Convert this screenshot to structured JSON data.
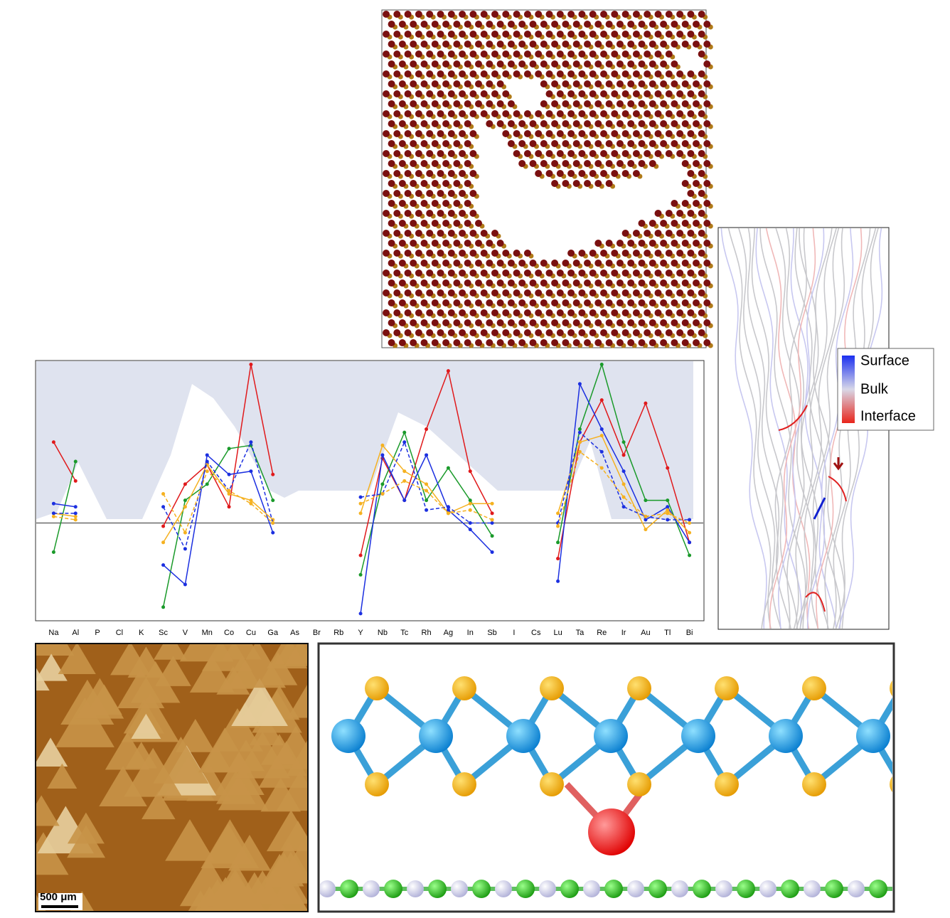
{
  "chart_data": {
    "type": "line",
    "categories": [
      "Na",
      "Al",
      "P",
      "Cl",
      "K",
      "Sc",
      "V",
      "Mn",
      "Co",
      "Cu",
      "Ga",
      "As",
      "Br",
      "Rb",
      "Y",
      "Nb",
      "Tc",
      "Rh",
      "Ag",
      "In",
      "Sb",
      "I",
      "Cs",
      "Lu",
      "Ta",
      "Re",
      "Ir",
      "Au",
      "Tl",
      "Bi"
    ],
    "ylim": [
      -3,
      5
    ],
    "series": [
      {
        "color": "#e0191b",
        "values": [
          2.5,
          1.3,
          null,
          null,
          null,
          -0.1,
          1.2,
          1.8,
          0.5,
          4.9,
          1.5,
          null,
          null,
          null,
          -1.0,
          2.0,
          0.7,
          2.9,
          4.7,
          1.6,
          0.3,
          null,
          null,
          -1.1,
          2.5,
          3.8,
          2.1,
          3.7,
          1.7,
          -0.6
        ]
      },
      {
        "color": "#1a9a2a",
        "values": [
          -0.9,
          1.9,
          null,
          null,
          null,
          -2.6,
          0.7,
          1.2,
          2.3,
          2.4,
          0.7,
          null,
          null,
          null,
          -1.6,
          1.2,
          2.8,
          0.7,
          1.7,
          0.7,
          -0.4,
          null,
          null,
          -0.6,
          2.9,
          4.9,
          2.5,
          0.7,
          0.7,
          -1.0
        ]
      },
      {
        "color": "#1b2fe0",
        "values": [
          0.6,
          0.5,
          null,
          null,
          null,
          -1.3,
          -1.9,
          2.1,
          1.5,
          1.6,
          -0.3,
          null,
          null,
          null,
          -2.8,
          2.1,
          0.7,
          2.1,
          0.4,
          -0.2,
          -0.9,
          null,
          null,
          -1.8,
          4.3,
          2.9,
          1.6,
          0.1,
          0.5,
          -0.6
        ]
      },
      {
        "color": "#f5b120",
        "values": [
          0.3,
          0.2,
          null,
          null,
          null,
          -0.6,
          0.5,
          1.8,
          0.9,
          0.7,
          0.1,
          null,
          null,
          null,
          0.3,
          2.4,
          1.6,
          1.2,
          0.3,
          0.6,
          0.6,
          null,
          null,
          0.3,
          2.5,
          2.7,
          1.2,
          -0.2,
          0.4,
          -0.3
        ]
      },
      {
        "color": "#1b2fe0",
        "line_style": "dashed",
        "values": [
          0.3,
          0.3,
          null,
          null,
          null,
          0.5,
          -0.8,
          1.9,
          1.0,
          2.5,
          0.0,
          null,
          null,
          null,
          0.8,
          0.9,
          2.5,
          0.4,
          0.5,
          0.0,
          0.0,
          null,
          null,
          0.0,
          2.8,
          2.2,
          0.5,
          0.2,
          0.1,
          0.1
        ]
      },
      {
        "color": "#f5b120",
        "line_style": "dashed",
        "values": [
          0.2,
          0.1,
          null,
          null,
          null,
          0.9,
          -0.3,
          1.6,
          1.0,
          0.6,
          0.0,
          null,
          null,
          null,
          0.6,
          0.9,
          1.3,
          1.0,
          0.3,
          0.4,
          0.1,
          null,
          null,
          -0.1,
          2.2,
          1.7,
          0.8,
          0.2,
          0.3,
          0.0
        ]
      }
    ]
  },
  "band_legend": {
    "labels": [
      "Surface",
      "Bulk",
      "Interface"
    ]
  },
  "afm_image": {
    "scale_bar": "500 μm"
  }
}
